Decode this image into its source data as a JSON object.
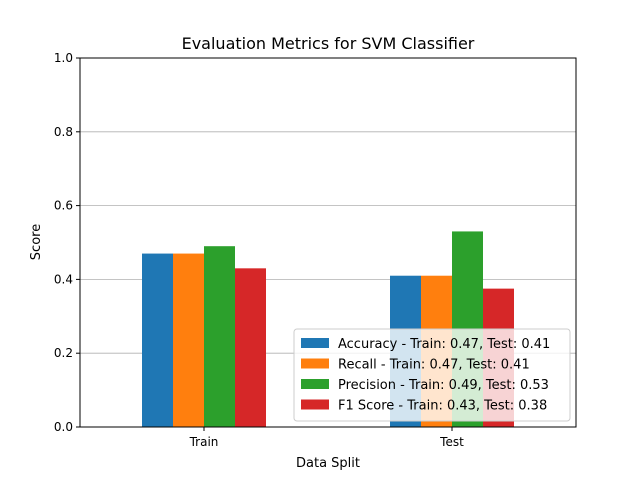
{
  "chart_data": {
    "type": "bar",
    "title": "Evaluation Metrics for SVM Classifier",
    "xlabel": "Data Split",
    "ylabel": "Score",
    "categories": [
      "Train",
      "Test"
    ],
    "ylim": [
      0,
      1.0
    ],
    "yticks": [
      "0.0",
      "0.2",
      "0.4",
      "0.6",
      "0.8",
      "1.0"
    ],
    "grid": "y",
    "legend_position": "lower-right",
    "series": [
      {
        "name": "Accuracy - Train: 0.47, Test: 0.41",
        "values": [
          0.47,
          0.41
        ],
        "color": "#1f77b4"
      },
      {
        "name": "Recall - Train: 0.47, Test: 0.41",
        "values": [
          0.47,
          0.41
        ],
        "color": "#ff7f0e"
      },
      {
        "name": "Precision - Train: 0.49, Test: 0.53",
        "values": [
          0.49,
          0.53
        ],
        "color": "#2ca02c"
      },
      {
        "name": "F1 Score - Train: 0.43, Test: 0.38",
        "values": [
          0.43,
          0.375
        ],
        "color": "#d62728"
      }
    ]
  }
}
